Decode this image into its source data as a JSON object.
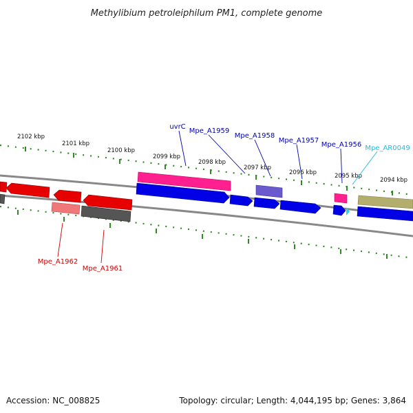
{
  "title": "Methylibium petroleiphilum PM1, complete genome",
  "accession": "Accession: NC_008825",
  "summary": "Topology: circular; Length: 4,044,195 bp; Genes: 3,864",
  "ruler_labels": [
    "2102 kbp",
    "2101 kbp",
    "2100 kbp",
    "2099 kbp",
    "2098 kbp",
    "2097 kbp",
    "2096 kbp",
    "2095 kbp",
    "2094 kbp"
  ],
  "gene_labels": {
    "uvrC": "uvrC",
    "mpe_a1959": "Mpe_A1959",
    "mpe_a1958": "Mpe_A1958",
    "mpe_a1957": "Mpe_A1957",
    "mpe_a1956": "Mpe_A1956",
    "mpe_ar0049": "Mpe_AR0049",
    "mpe_a1962": "Mpe_A1962",
    "mpe_a1961": "Mpe_A1961"
  },
  "colors": {
    "cds_forward": "#0000e6",
    "cds_reverse": "#e60000",
    "pink_feature": "#ff1f8f",
    "purple_feature": "#6a5acd",
    "grey_feature": "#555555",
    "light_red_feature": "#f07878",
    "olive_feature": "#b3ad6e",
    "rna_feature": "#33ccee",
    "ticks": "#2e8b22",
    "label_blue": "#0000aa",
    "label_red": "#cc0000",
    "label_cyan": "#22bbdd"
  }
}
